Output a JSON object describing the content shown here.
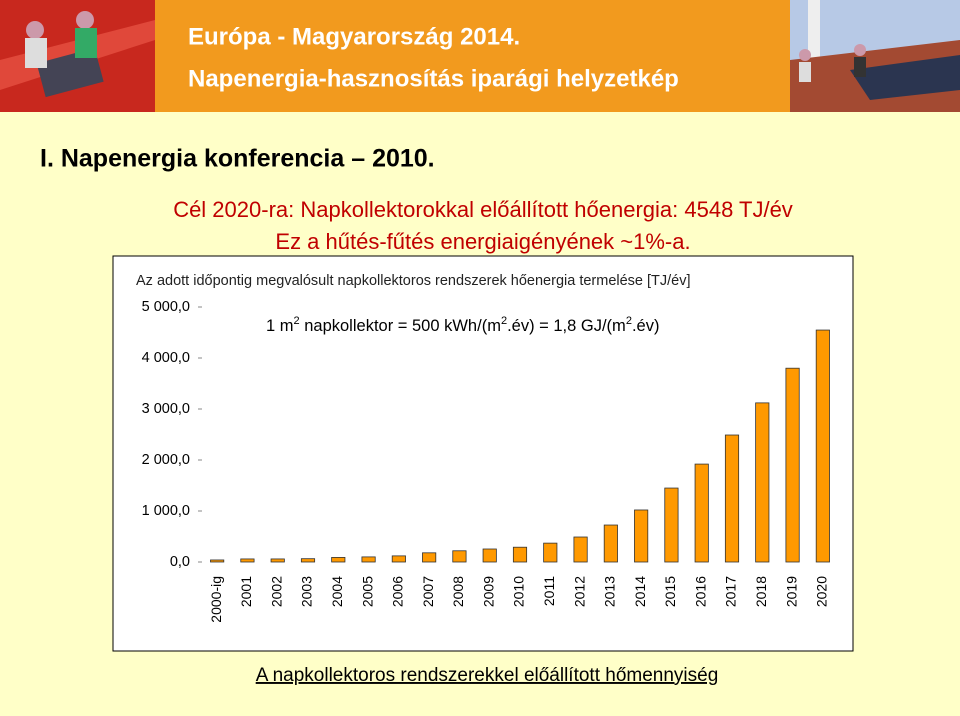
{
  "header": {
    "title": "Európa - Magyarország 2014.",
    "subtitle": "Napenergia-hasznosítás iparági helyzetkép"
  },
  "conference": "I. Napenergia konferencia – 2010.",
  "goal_lines": [
    "Cél 2020-ra: Napkollektorokkal előállított hőenergia: 4548 TJ/év",
    "Ez a hűtés-fűtés energiaigényének ~1%-a."
  ],
  "chart_data": {
    "type": "bar",
    "title": "Az adott időpontig megvalósult napkollektoros rendszerek hőenergia termelése [TJ/év]",
    "annotation": [
      "1 m",
      "2",
      " napkollektor = 500 kWh/(m",
      "2",
      ".év) = 1,8 GJ/(m",
      "2",
      ".év)"
    ],
    "categories": [
      "2000-ig",
      "2001",
      "2002",
      "2003",
      "2004",
      "2005",
      "2006",
      "2007",
      "2008",
      "2009",
      "2010",
      "2011",
      "2012",
      "2013",
      "2014",
      "2015",
      "2016",
      "2017",
      "2018",
      "2019",
      "2020"
    ],
    "values": [
      40,
      60,
      60,
      65,
      90,
      100,
      120,
      180,
      220,
      255,
      290,
      370,
      490,
      725,
      1020,
      1450,
      1920,
      2490,
      3120,
      3800,
      4548
    ],
    "color": "#ff9900",
    "ylim": [
      0,
      5000
    ],
    "yticks": [
      {
        "value": 0,
        "label": "0,0"
      },
      {
        "value": 1000,
        "label": "1 000,0"
      },
      {
        "value": 2000,
        "label": "2 000,0"
      },
      {
        "value": 3000,
        "label": "3 000,0"
      },
      {
        "value": 4000,
        "label": "4 000,0"
      },
      {
        "value": 5000,
        "label": "5 000,0"
      }
    ],
    "grid": false
  },
  "caption": "A napkollektoros rendszerekkel előállított hőmennyiség"
}
